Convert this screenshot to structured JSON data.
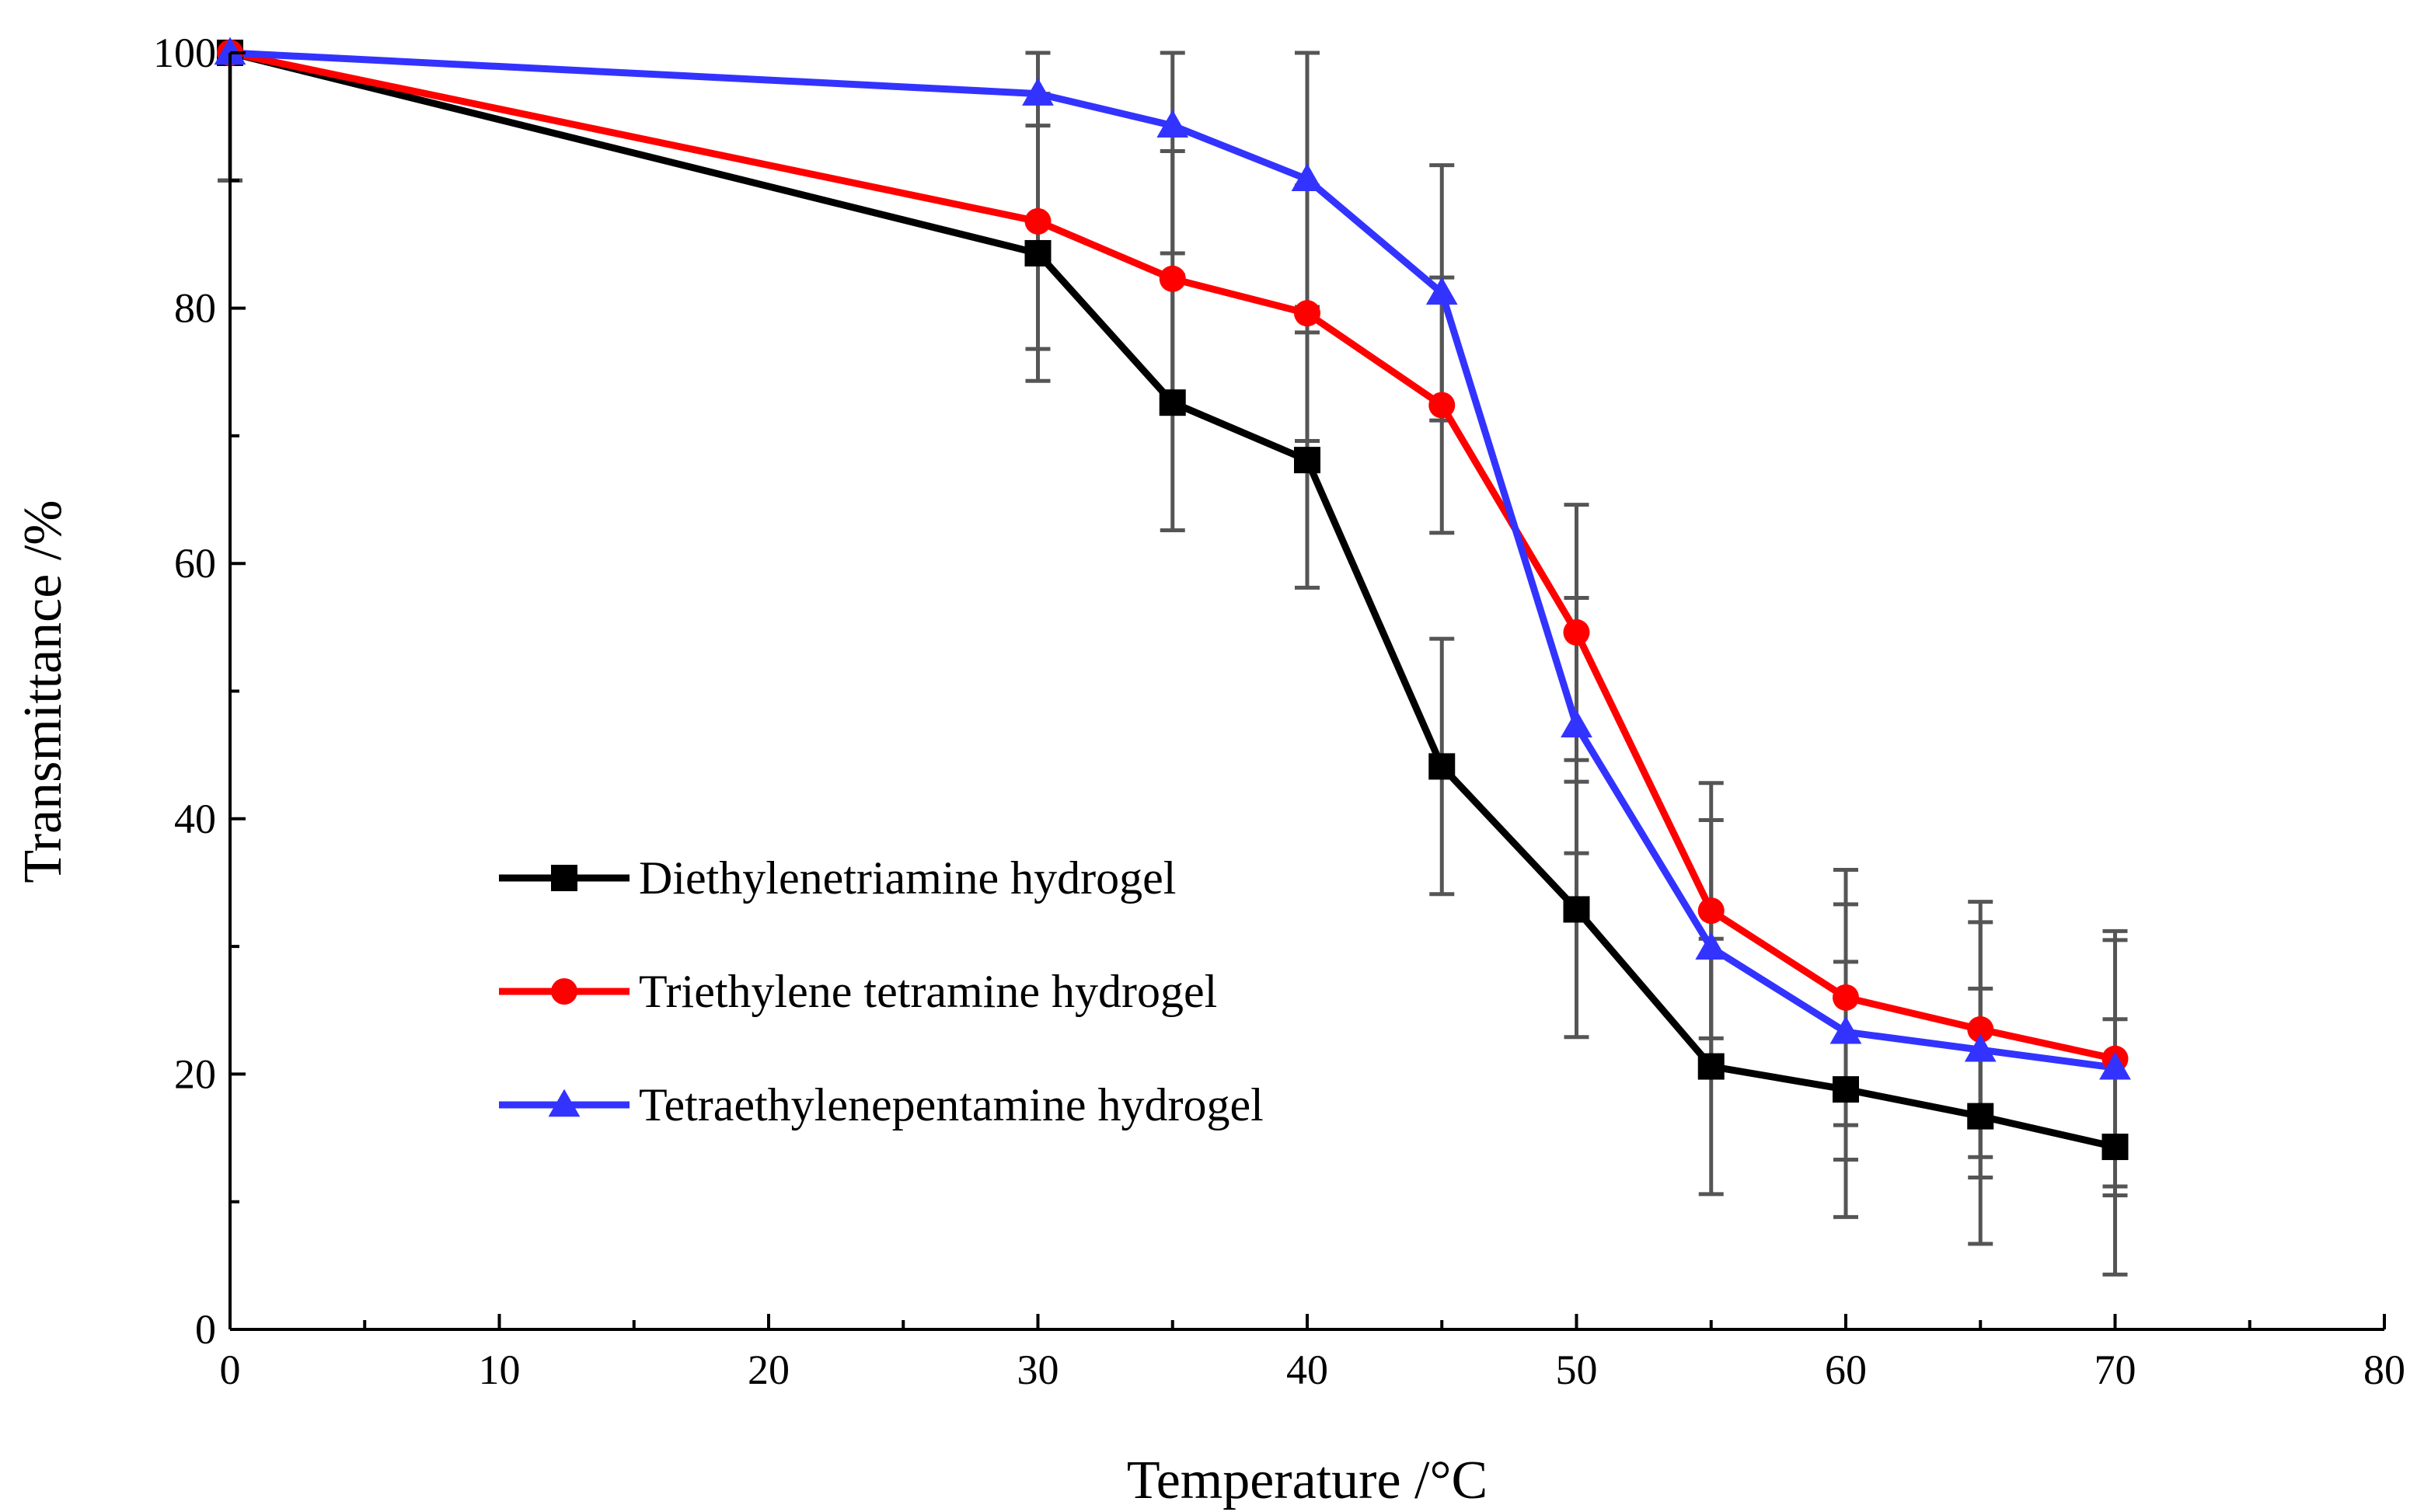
{
  "chart_data": {
    "type": "line",
    "title": "",
    "xlabel": "Temperature /°C",
    "ylabel": "Transmittance /%",
    "xlim": [
      0,
      80
    ],
    "ylim": [
      0,
      100
    ],
    "xticks": [
      0,
      10,
      20,
      30,
      40,
      50,
      60,
      70,
      80
    ],
    "yticks": [
      0,
      20,
      40,
      60,
      80,
      100
    ],
    "xtick_labels": [
      "0",
      "10",
      "20",
      "30",
      "40",
      "50",
      "60",
      "70",
      "80"
    ],
    "ytick_labels": [
      "0",
      "20",
      "40",
      "60",
      "80",
      "100"
    ],
    "grid": false,
    "legend_position": "lower-left",
    "x": [
      0,
      30,
      35,
      40,
      45,
      50,
      55,
      60,
      65,
      70
    ],
    "series": [
      {
        "name": "Diethylenetriamine hydrogel",
        "color": "#000000",
        "marker": "square",
        "values": [
          100,
          84.3,
          72.6,
          68.1,
          44.1,
          32.9,
          20.6,
          18.8,
          16.7,
          14.3
        ],
        "errors": [
          10,
          10,
          10,
          10,
          10,
          10,
          10,
          10,
          10,
          10
        ]
      },
      {
        "name": "Triethylene tetramine hydrogel",
        "color": "#ff0000",
        "marker": "circle",
        "values": [
          100,
          86.8,
          82.3,
          79.6,
          72.4,
          54.6,
          32.8,
          26.0,
          23.5,
          21.2
        ],
        "errors": [
          10,
          10,
          10,
          10,
          10,
          10,
          10,
          10,
          10,
          10
        ]
      },
      {
        "name": "Tetraethylenepentamine hydrogel",
        "color": "#3333ff",
        "marker": "triangle",
        "values": [
          100,
          96.8,
          94.3,
          90.1,
          81.2,
          47.3,
          29.9,
          23.3,
          21.9,
          20.5
        ],
        "errors": [
          10,
          10,
          10,
          10,
          10,
          10,
          10,
          10,
          10,
          10
        ]
      }
    ]
  }
}
